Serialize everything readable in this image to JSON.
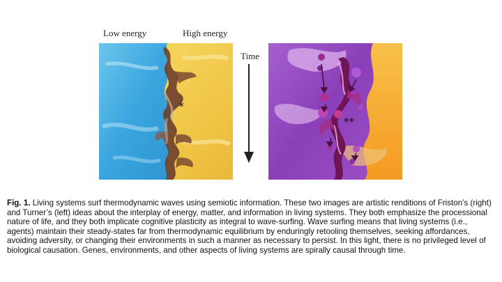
{
  "figure": {
    "labels": {
      "low_energy": "Low energy",
      "high_energy": "High energy",
      "time": "Time"
    },
    "annotations": {
      "left_marker": "*",
      "right_marker": "**"
    },
    "colors": {
      "low_energy_blue": "#4fb0e3",
      "high_energy_yellow": "#f3cf55",
      "wave_brown": "#6b3f2e",
      "purple": "#8a3fb8",
      "orange": "#f6a52c",
      "magenta": "#8a1f6c"
    }
  },
  "caption": {
    "fig_number": "Fig. 1.",
    "text": "Living systems surf thermodynamic waves using semiotic information.  These two images are artistic renditions of Friston’s (right) and Turner’s (left) ideas about the interplay of energy, matter, and information in living systems.  They both emphasize the processional nature of life, and they both implicate cognitive plasticity as integral to wave-surfing.  Wave surfing means that living systems (i.e., agents) maintain their steady-states far from thermodynamic equilibrium by enduringly retooling themselves, seeking affordances, avoiding adversity, or changing their environments in such a manner as necessary to persist.  In this light, there is no privileged level of biological causation. Genes, environments, and other aspects of living systems are spirally causal through time."
  }
}
